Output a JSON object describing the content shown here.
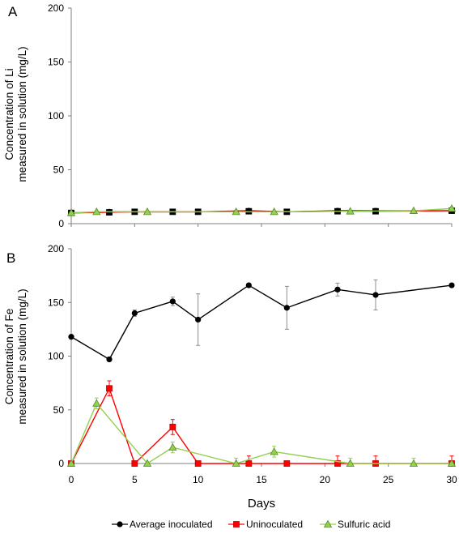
{
  "colors": {
    "average_inoculated": "#000000",
    "uninoculated": "#ff0000",
    "sulfuric_acid": "#92d050",
    "marker_fill_uninoculated": "#ff0000",
    "marker_fill_sulfuric": "#92d050",
    "axis": "#7f7f7f"
  },
  "chart_data": [
    {
      "type": "line",
      "panel_label": "A",
      "ylabel_lines": [
        "Concentration of Li",
        "measured in solution (mg/L)"
      ],
      "ylim": [
        0,
        200
      ],
      "xlim": [
        0,
        30
      ],
      "yticks": [
        0,
        50,
        100,
        150,
        200
      ],
      "xticks": [
        0,
        5,
        10,
        15,
        20,
        25,
        30
      ],
      "show_x_tick_labels": false,
      "series": [
        {
          "name": "Average inoculated",
          "color": "#000000",
          "marker": "circle",
          "points": [
            [
              0,
              10
            ],
            [
              3,
              11
            ],
            [
              5,
              11
            ],
            [
              8,
              11
            ],
            [
              10,
              11
            ],
            [
              14,
              12
            ],
            [
              17,
              11
            ],
            [
              21,
              12
            ],
            [
              24,
              12
            ],
            [
              30,
              12
            ]
          ]
        },
        {
          "name": "Uninoculated",
          "color": "#ff0000",
          "marker": "square",
          "points": [
            [
              0,
              10
            ],
            [
              3,
              10.5
            ],
            [
              5,
              11
            ],
            [
              8,
              11
            ],
            [
              10,
              11
            ],
            [
              14,
              11.5
            ],
            [
              17,
              11
            ],
            [
              21,
              11.5
            ],
            [
              24,
              11.5
            ],
            [
              30,
              12
            ]
          ]
        },
        {
          "name": "Sulfuric acid",
          "color": "#92d050",
          "marker": "triangle",
          "points": [
            [
              0,
              10
            ],
            [
              2,
              11
            ],
            [
              6,
              11
            ],
            [
              13,
              11
            ],
            [
              16,
              11
            ],
            [
              22,
              11.5
            ],
            [
              27,
              12
            ],
            [
              30,
              14
            ]
          ]
        }
      ]
    },
    {
      "type": "line",
      "panel_label": "B",
      "ylabel_lines": [
        "Concentration of Fe",
        "measured in solution (mg/L)"
      ],
      "xlabel": "Days",
      "ylim": [
        0,
        200
      ],
      "xlim": [
        0,
        30
      ],
      "yticks": [
        0,
        50,
        100,
        150,
        200
      ],
      "xticks": [
        0,
        5,
        10,
        15,
        20,
        25,
        30
      ],
      "show_x_tick_labels": true,
      "series": [
        {
          "name": "Average inoculated",
          "color": "#000000",
          "marker": "circle",
          "points": [
            [
              0,
              118
            ],
            [
              3,
              97
            ],
            [
              5,
              140
            ],
            [
              8,
              151
            ],
            [
              10,
              134
            ],
            [
              14,
              166
            ],
            [
              17,
              145
            ],
            [
              21,
              162
            ],
            [
              24,
              157
            ],
            [
              30,
              166
            ]
          ],
          "errors": [
            0,
            2,
            3,
            4,
            24,
            0,
            20,
            6,
            14,
            0
          ]
        },
        {
          "name": "Uninoculated",
          "color": "#ff0000",
          "marker": "square",
          "points": [
            [
              0,
              0
            ],
            [
              3,
              70
            ],
            [
              5,
              0
            ],
            [
              8,
              34
            ],
            [
              10,
              0
            ],
            [
              14,
              0
            ],
            [
              17,
              0
            ],
            [
              21,
              0
            ],
            [
              24,
              0
            ],
            [
              30,
              0
            ]
          ],
          "errors": [
            0,
            7,
            0,
            7,
            0,
            7,
            0,
            7,
            7,
            7
          ]
        },
        {
          "name": "Sulfuric acid",
          "color": "#92d050",
          "marker": "triangle",
          "points": [
            [
              0,
              0
            ],
            [
              2,
              56
            ],
            [
              6,
              0
            ],
            [
              8,
              15
            ],
            [
              13,
              0
            ],
            [
              16,
              11
            ],
            [
              22,
              0
            ],
            [
              27,
              0
            ],
            [
              30,
              0
            ]
          ],
          "errors": [
            0,
            5,
            0,
            5,
            5,
            5,
            5,
            5,
            0
          ]
        }
      ]
    }
  ],
  "legend": {
    "entries": [
      {
        "label": "Average inoculated",
        "color": "#000000",
        "marker": "circle"
      },
      {
        "label": "Uninoculated",
        "color": "#ff0000",
        "marker": "square"
      },
      {
        "label": "Sulfuric acid",
        "color": "#92d050",
        "marker": "triangle"
      }
    ]
  }
}
